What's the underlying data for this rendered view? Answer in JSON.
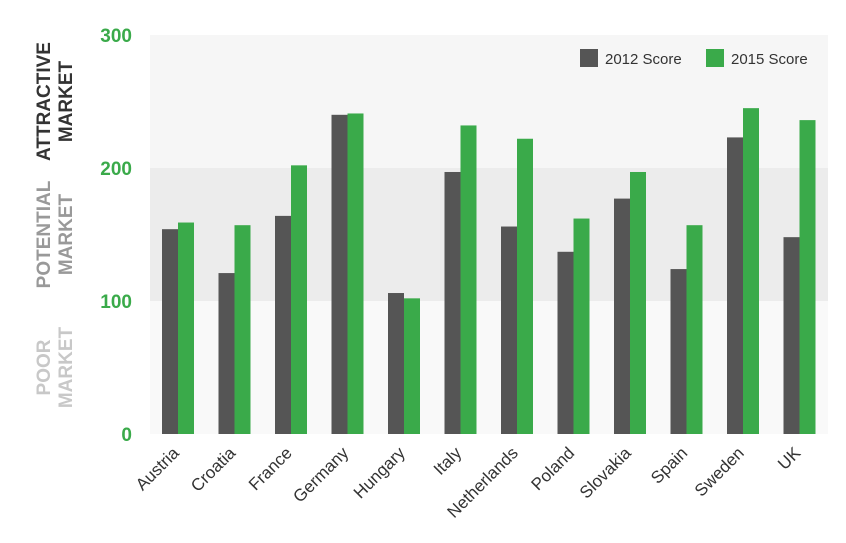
{
  "chart_data": {
    "type": "bar",
    "categories": [
      "Austria",
      "Croatia",
      "France",
      "Germany",
      "Hungary",
      "Italy",
      "Netherlands",
      "Poland",
      "Slovakia",
      "Spain",
      "Sweden",
      "UK"
    ],
    "series": [
      {
        "name": "2012 Score",
        "color": "#555555",
        "values": [
          154,
          121,
          164,
          240,
          106,
          197,
          156,
          137,
          177,
          124,
          223,
          148
        ]
      },
      {
        "name": "2015 Score",
        "color": "#3aaa4a",
        "values": [
          159,
          157,
          202,
          241,
          102,
          232,
          222,
          162,
          197,
          157,
          245,
          236
        ]
      }
    ],
    "ylim": [
      0,
      300
    ],
    "yticks": [
      0,
      100,
      200,
      300
    ],
    "tick_color": "#3aaa4a",
    "bands": [
      {
        "from": 200,
        "to": 300,
        "label_lines": [
          "ATTRACTIVE",
          "MARKET"
        ],
        "fill": "#f6f6f6",
        "label_color": "#333333"
      },
      {
        "from": 100,
        "to": 200,
        "label_lines": [
          "POTENTIAL",
          "MARKET"
        ],
        "fill": "#ececec",
        "label_color": "#999999"
      },
      {
        "from": 0,
        "to": 100,
        "label_lines": [
          "POOR",
          "MARKET"
        ],
        "fill": "#f9f9f9",
        "label_color": "#c8c8c8"
      }
    ],
    "legend_position": "top-right",
    "grid": false
  }
}
